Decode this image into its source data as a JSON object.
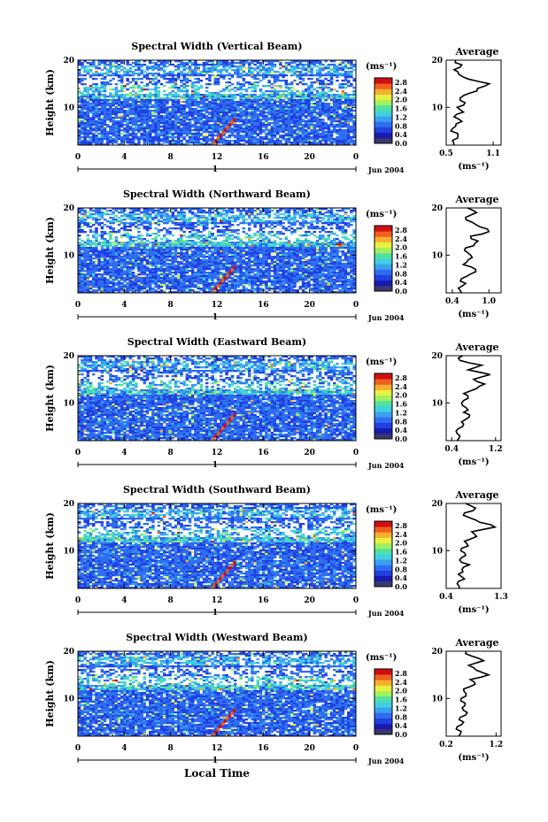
{
  "figure": {
    "xlabel": "Local Time",
    "date_label": "Jun 2004",
    "day_label": "1",
    "ylabel": "Height (km)",
    "unit_label": "(ms⁻¹)",
    "average_title": "Average",
    "average_xlabel": "(ms⁻¹)"
  },
  "colors": {
    "scale": [
      "#3a3a6a",
      "#1a1ab0",
      "#2040e0",
      "#2f6df0",
      "#3aa0f0",
      "#40d0e0",
      "#50e0a0",
      "#a0f060",
      "#e8f040",
      "#f8b030",
      "#f06020",
      "#d01010"
    ],
    "average_line": "#000000"
  },
  "chart_data": [
    {
      "type": "heatmap",
      "title": "Spectral Width (Vertical Beam)",
      "x_ticks": [
        "0",
        "4",
        "8",
        "12",
        "16",
        "20",
        "0"
      ],
      "x_range_hours": [
        0,
        24
      ],
      "y_ticks": [
        "20",
        "10"
      ],
      "y_range_km": [
        2,
        20
      ],
      "colorbar_ticks": [
        "2.8",
        "2.4",
        "2.0",
        "1.6",
        "1.2",
        "0.8",
        "0.4",
        "0.0"
      ],
      "colorbar_range": [
        0,
        3.0
      ],
      "average": {
        "xlim": [
          0.5,
          1.2
        ],
        "x_ticks": [
          "0.5",
          "1.1"
        ],
        "y_ticks": [
          "20",
          "10"
        ],
        "height_km": [
          2,
          3,
          4,
          5,
          6,
          7,
          8,
          9,
          10,
          11,
          12,
          13,
          14,
          15,
          16,
          17,
          18,
          19,
          20
        ],
        "values": [
          0.6,
          0.58,
          0.65,
          0.56,
          0.62,
          0.7,
          0.6,
          0.72,
          0.64,
          0.74,
          0.68,
          0.8,
          0.9,
          1.05,
          0.78,
          0.66,
          0.6,
          0.7,
          0.62
        ]
      }
    },
    {
      "type": "heatmap",
      "title": "Spectral Width (Northward Beam)",
      "x_ticks": [
        "0",
        "4",
        "8",
        "12",
        "16",
        "20",
        "0"
      ],
      "x_range_hours": [
        0,
        24
      ],
      "y_ticks": [
        "20",
        "10"
      ],
      "y_range_km": [
        2,
        20
      ],
      "colorbar_ticks": [
        "2.8",
        "2.4",
        "2.0",
        "1.6",
        "1.2",
        "0.8",
        "0.4",
        "0.0"
      ],
      "colorbar_range": [
        0,
        3.0
      ],
      "average": {
        "xlim": [
          0.3,
          1.2
        ],
        "x_ticks": [
          "0.4",
          "1.0"
        ],
        "y_ticks": [
          "20",
          "10"
        ],
        "height_km": [
          2,
          3,
          4,
          5,
          6,
          7,
          8,
          9,
          10,
          11,
          12,
          13,
          14,
          15,
          16,
          17,
          18,
          19,
          20
        ],
        "values": [
          0.55,
          0.5,
          0.62,
          0.55,
          0.7,
          0.78,
          0.58,
          0.66,
          0.7,
          0.6,
          0.75,
          0.82,
          0.7,
          1.0,
          0.85,
          0.72,
          0.62,
          0.8,
          0.65
        ]
      }
    },
    {
      "type": "heatmap",
      "title": "Spectral Width (Eastward Beam)",
      "x_ticks": [
        "0",
        "4",
        "8",
        "12",
        "16",
        "20",
        "0"
      ],
      "x_range_hours": [
        0,
        24
      ],
      "y_ticks": [
        "20",
        "10"
      ],
      "y_range_km": [
        2,
        20
      ],
      "colorbar_ticks": [
        "2.8",
        "2.4",
        "2.0",
        "1.6",
        "1.2",
        "0.8",
        "0.4",
        "0.0"
      ],
      "colorbar_range": [
        0,
        3.0
      ],
      "average": {
        "xlim": [
          0.3,
          1.3
        ],
        "x_ticks": [
          "0.4",
          "1.2"
        ],
        "y_ticks": [
          "20",
          "10"
        ],
        "height_km": [
          2,
          3,
          4,
          5,
          6,
          7,
          8,
          9,
          10,
          11,
          12,
          13,
          14,
          15,
          16,
          17,
          18,
          19,
          20
        ],
        "values": [
          0.5,
          0.55,
          0.48,
          0.6,
          0.58,
          0.72,
          0.62,
          0.66,
          0.58,
          0.7,
          0.62,
          0.85,
          1.0,
          0.8,
          1.1,
          0.7,
          0.95,
          0.55,
          0.6
        ]
      }
    },
    {
      "type": "heatmap",
      "title": "Spectral Width (Southward Beam)",
      "x_ticks": [
        "0",
        "4",
        "8",
        "12",
        "16",
        "20",
        "0"
      ],
      "x_range_hours": [
        0,
        24
      ],
      "y_ticks": [
        "20",
        "10"
      ],
      "y_range_km": [
        2,
        20
      ],
      "colorbar_ticks": [
        "2.8",
        "2.4",
        "2.0",
        "1.6",
        "1.2",
        "0.8",
        "0.4",
        "0.0"
      ],
      "colorbar_range": [
        0,
        3.0
      ],
      "average": {
        "xlim": [
          0.4,
          1.3
        ],
        "x_ticks": [
          "0.4",
          "1.3"
        ],
        "y_ticks": [
          "20",
          "10"
        ],
        "height_km": [
          2,
          3,
          4,
          5,
          6,
          7,
          8,
          9,
          10,
          11,
          12,
          13,
          14,
          15,
          16,
          17,
          18,
          19,
          20
        ],
        "values": [
          0.62,
          0.58,
          0.7,
          0.6,
          0.66,
          0.78,
          0.62,
          0.72,
          0.64,
          0.76,
          0.7,
          0.9,
          0.82,
          1.2,
          0.95,
          0.78,
          0.7,
          0.88,
          0.72
        ]
      }
    },
    {
      "type": "heatmap",
      "title": "Spectral Width (Westward Beam)",
      "x_ticks": [
        "0",
        "4",
        "8",
        "12",
        "16",
        "20",
        "0"
      ],
      "x_range_hours": [
        0,
        24
      ],
      "y_ticks": [
        "20",
        "10"
      ],
      "y_range_km": [
        2,
        20
      ],
      "colorbar_ticks": [
        "2.8",
        "2.4",
        "2.0",
        "1.6",
        "1.2",
        "0.8",
        "0.4",
        "0.0"
      ],
      "colorbar_range": [
        0,
        3.0
      ],
      "average": {
        "xlim": [
          0.2,
          1.3
        ],
        "x_ticks": [
          "0.2",
          "1.2"
        ],
        "y_ticks": [
          "20",
          "10"
        ],
        "height_km": [
          2,
          3,
          4,
          5,
          6,
          7,
          8,
          9,
          10,
          11,
          12,
          13,
          14,
          15,
          16,
          17,
          18,
          19,
          20
        ],
        "values": [
          0.45,
          0.5,
          0.42,
          0.55,
          0.48,
          0.62,
          0.52,
          0.58,
          0.5,
          0.6,
          0.55,
          0.78,
          0.68,
          1.05,
          0.8,
          0.65,
          0.95,
          0.7,
          0.6
        ]
      }
    }
  ]
}
